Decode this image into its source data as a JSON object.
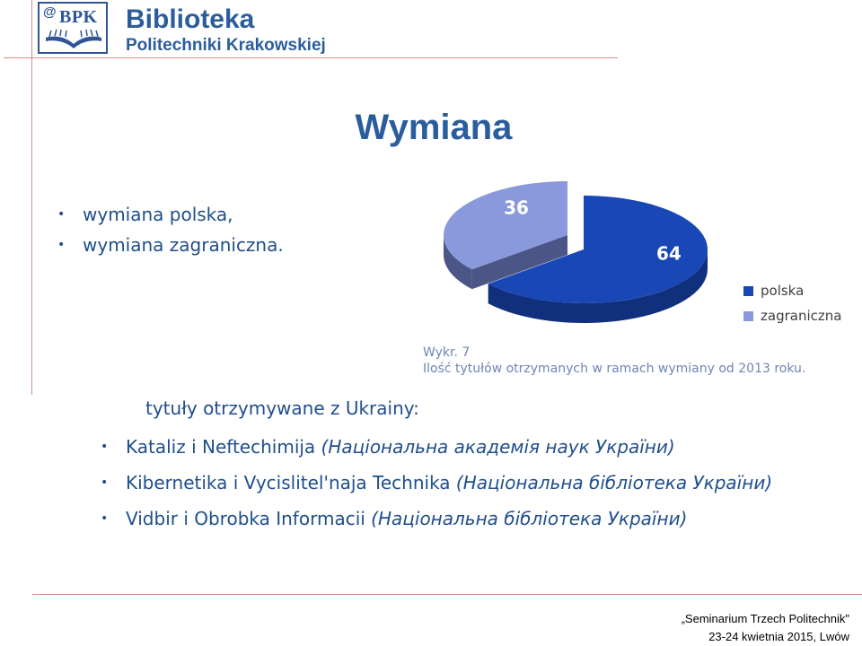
{
  "header": {
    "logo_at": "@",
    "logo_text": "BPK",
    "title": "Biblioteka",
    "subtitle": "Politechniki Krakowskiej"
  },
  "slide": {
    "title": "Wymiana",
    "bullets_top": [
      "wymiana polska,",
      "wymiana zagraniczna."
    ],
    "subheading": "tytuły otrzymywane z Ukrainy:",
    "bullets_bottom": [
      {
        "text": "Kataliz i Neftechimija ",
        "italic": "(Національна академія наук України)"
      },
      {
        "text": "Kibernetika i Vycislitel'naja Technika ",
        "italic": "(Національна бібліотека України)"
      },
      {
        "text": "Vidbir i Obrobka Informacii ",
        "italic": "(Національна бібліотека України)"
      }
    ],
    "caption_line1": "Wykr. 7",
    "caption_line2": "Ilość tytułów otrzymanych w ramach wymiany od 2013 roku."
  },
  "chart_data": {
    "type": "pie",
    "style": "3d",
    "categories": [
      "polska",
      "zagraniczna"
    ],
    "values": [
      64,
      36
    ],
    "colors": [
      "#1947b6",
      "#8a98dc"
    ],
    "data_labels": [
      "64",
      "36"
    ],
    "legend_position": "right"
  },
  "footer": {
    "line1": "„Seminarium Trzech Politechnik\"",
    "line2": "23-24 kwietnia 2015, Lwów"
  }
}
